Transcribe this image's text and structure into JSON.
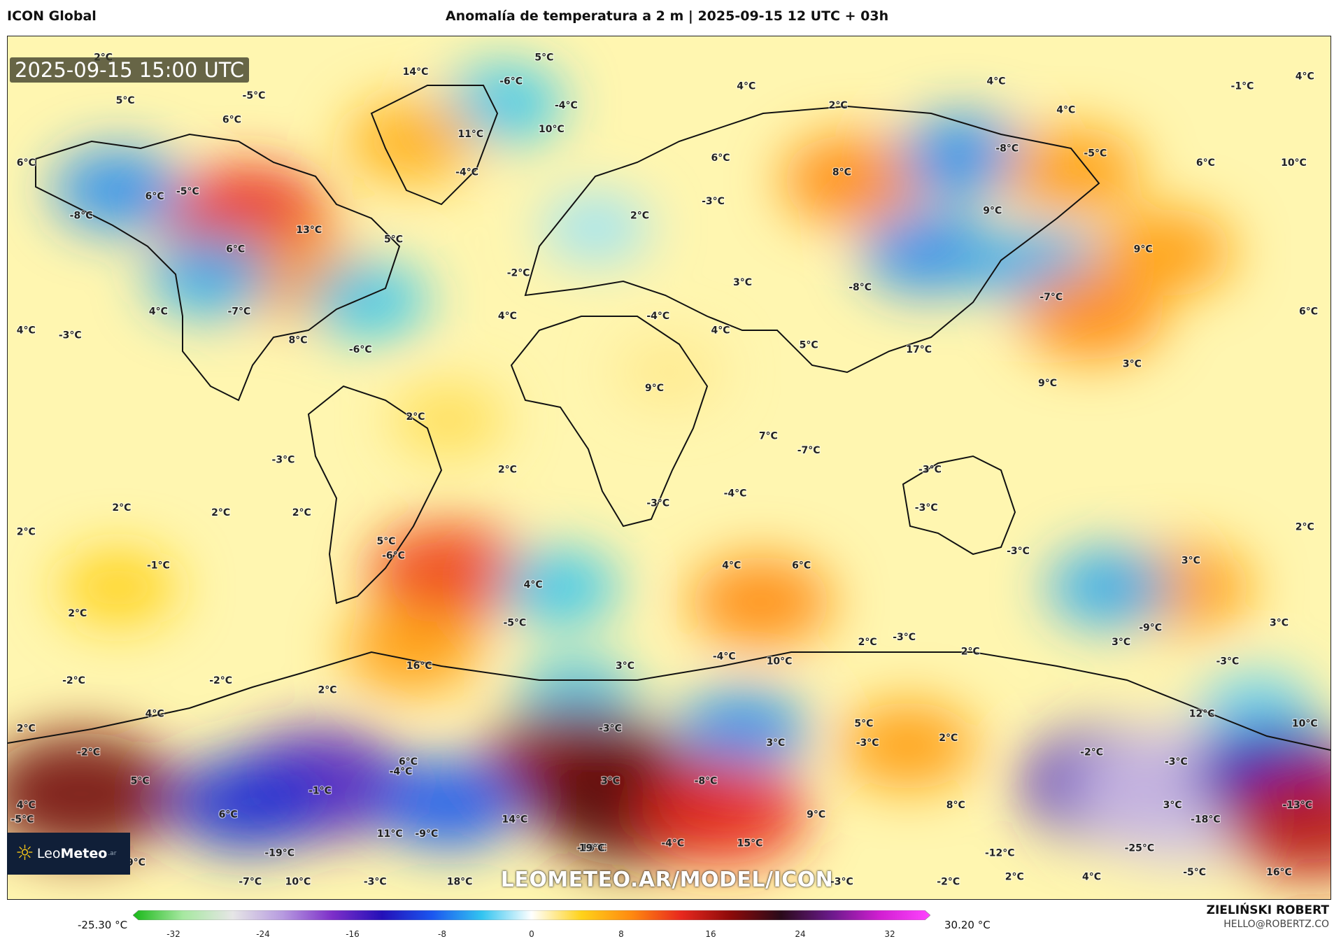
{
  "header": {
    "model": "ICON Global",
    "title": "Anomalía de temperatura a 2 m | 2025-09-15 12 UTC + 03h"
  },
  "timestamp": "2025-09-15 15:00 UTC",
  "watermark": "LEOMETEO.AR/MODEL/ICON",
  "logo": {
    "brand_light": "Leo",
    "brand_bold": "Meteo",
    "tld": ".ar",
    "icon": "sun-icon"
  },
  "author": {
    "name": "ZIELIŃSKI ROBERT",
    "email": "HELLO@ROBERTZ.CO"
  },
  "colorbar": {
    "min_label": "-25.30 °C",
    "max_label": "30.20 °C",
    "ticks": [
      "-32",
      "-24",
      "-16",
      "-8",
      "0",
      "8",
      "16",
      "24",
      "32"
    ],
    "range": [
      -32,
      32
    ],
    "stops": [
      {
        "v": -32,
        "c": "#18b818"
      },
      {
        "v": -28,
        "c": "#a6e8a0"
      },
      {
        "v": -24,
        "c": "#e6e6e6"
      },
      {
        "v": -20,
        "c": "#b79be0"
      },
      {
        "v": -16,
        "c": "#7d2fc9"
      },
      {
        "v": -12,
        "c": "#2410b8"
      },
      {
        "v": -8,
        "c": "#1b56ef"
      },
      {
        "v": -4,
        "c": "#32c4f0"
      },
      {
        "v": 0,
        "c": "#ffffff"
      },
      {
        "v": 4,
        "c": "#ffd21a"
      },
      {
        "v": 8,
        "c": "#ff8a10"
      },
      {
        "v": 12,
        "c": "#e8281e"
      },
      {
        "v": 16,
        "c": "#8c0a0a"
      },
      {
        "v": 20,
        "c": "#2a0a1a"
      },
      {
        "v": 24,
        "c": "#6a1a8a"
      },
      {
        "v": 28,
        "c": "#d21fd2"
      },
      {
        "v": 32,
        "c": "#ff44ff"
      }
    ]
  },
  "map": {
    "projection": "equirectangular",
    "lon_range": [
      -180,
      180
    ],
    "lat_range": [
      90,
      -90
    ],
    "anomalies": [
      {
        "lon": -115,
        "lat": 52,
        "v": 12
      },
      {
        "lon": -100,
        "lat": 40,
        "v": 7
      },
      {
        "lon": -150,
        "lat": 58,
        "v": -6
      },
      {
        "lon": -125,
        "lat": 40,
        "v": -5
      },
      {
        "lon": -82,
        "lat": 35,
        "v": -4
      },
      {
        "lon": -45,
        "lat": 76,
        "v": -4
      },
      {
        "lon": -60,
        "lat": 10,
        "v": 3
      },
      {
        "lon": -60,
        "lat": -22,
        "v": 11
      },
      {
        "lon": -70,
        "lat": -38,
        "v": 7
      },
      {
        "lon": -30,
        "lat": -25,
        "v": -4
      },
      {
        "lon": -20,
        "lat": 50,
        "v": -2
      },
      {
        "lon": 50,
        "lat": 60,
        "v": 8
      },
      {
        "lon": 80,
        "lat": 65,
        "v": -6
      },
      {
        "lon": 110,
        "lat": 62,
        "v": 7
      },
      {
        "lon": 70,
        "lat": 45,
        "v": -6
      },
      {
        "lon": 100,
        "lat": 42,
        "v": -5
      },
      {
        "lon": 115,
        "lat": 32,
        "v": 8
      },
      {
        "lon": 135,
        "lat": 45,
        "v": 7
      },
      {
        "lon": 25,
        "lat": -28,
        "v": 8
      },
      {
        "lon": 140,
        "lat": -25,
        "v": 7
      },
      {
        "lon": 120,
        "lat": -25,
        "v": -5
      },
      {
        "lon": -25,
        "lat": -48,
        "v": -4
      },
      {
        "lon": 20,
        "lat": -55,
        "v": -6
      },
      {
        "lon": 160,
        "lat": -50,
        "v": -3
      },
      {
        "lon": -160,
        "lat": -68,
        "v": 17
      },
      {
        "lon": -25,
        "lat": -62,
        "v": 16
      },
      {
        "lon": -10,
        "lat": -70,
        "v": 18
      },
      {
        "lon": -95,
        "lat": -66,
        "v": -14
      },
      {
        "lon": -115,
        "lat": -70,
        "v": -10
      },
      {
        "lon": -60,
        "lat": -70,
        "v": -8
      },
      {
        "lon": 15,
        "lat": -72,
        "v": 12
      },
      {
        "lon": 120,
        "lat": -66,
        "v": -14
      },
      {
        "lon": 140,
        "lat": -68,
        "v": -22
      },
      {
        "lon": 165,
        "lat": -64,
        "v": -12
      },
      {
        "lon": 175,
        "lat": -74,
        "v": 14
      },
      {
        "lon": 65,
        "lat": -58,
        "v": 7
      },
      {
        "lon": -70,
        "lat": 68,
        "v": 6
      },
      {
        "lon": -150,
        "lat": -25,
        "v": 4
      },
      {
        "lon": 0,
        "lat": 20,
        "v": 2
      }
    ],
    "labels": [
      {
        "t": "2°C",
        "lon": -154,
        "lat": 85
      },
      {
        "t": "-6°C",
        "lon": -43,
        "lat": 80
      },
      {
        "t": "5°C",
        "lon": -34,
        "lat": 85
      },
      {
        "t": "14°C",
        "lon": -69,
        "lat": 82
      },
      {
        "t": "4°C",
        "lon": 21,
        "lat": 79
      },
      {
        "t": "4°C",
        "lon": 89,
        "lat": 80
      },
      {
        "t": "-1°C",
        "lon": 156,
        "lat": 79
      },
      {
        "t": "4°C",
        "lon": 173,
        "lat": 81
      },
      {
        "t": "-5°C",
        "lon": -113,
        "lat": 77
      },
      {
        "t": "5°C",
        "lon": -148,
        "lat": 76
      },
      {
        "t": "-4°C",
        "lon": -28,
        "lat": 75
      },
      {
        "t": "2°C",
        "lon": 46,
        "lat": 75
      },
      {
        "t": "4°C",
        "lon": 108,
        "lat": 74
      },
      {
        "t": "6°C",
        "lon": -119,
        "lat": 72
      },
      {
        "t": "11°C",
        "lon": -54,
        "lat": 69
      },
      {
        "t": "10°C",
        "lon": -32,
        "lat": 70
      },
      {
        "t": "6°C",
        "lon": -175,
        "lat": 63
      },
      {
        "t": "6°C",
        "lon": 14,
        "lat": 64
      },
      {
        "t": "-8°C",
        "lon": 92,
        "lat": 66
      },
      {
        "t": "-5°C",
        "lon": 116,
        "lat": 65
      },
      {
        "t": "6°C",
        "lon": 146,
        "lat": 63
      },
      {
        "t": "10°C",
        "lon": 170,
        "lat": 63
      },
      {
        "t": "-4°C",
        "lon": -55,
        "lat": 61
      },
      {
        "t": "8°C",
        "lon": 47,
        "lat": 61
      },
      {
        "t": "6°C",
        "lon": -140,
        "lat": 56
      },
      {
        "t": "-5°C",
        "lon": -131,
        "lat": 57
      },
      {
        "t": "-3°C",
        "lon": 12,
        "lat": 55
      },
      {
        "t": "-8°C",
        "lon": -160,
        "lat": 52
      },
      {
        "t": "2°C",
        "lon": -8,
        "lat": 52
      },
      {
        "t": "9°C",
        "lon": 88,
        "lat": 53
      },
      {
        "t": "13°C",
        "lon": -98,
        "lat": 49
      },
      {
        "t": "5°C",
        "lon": -75,
        "lat": 47
      },
      {
        "t": "6°C",
        "lon": -118,
        "lat": 45
      },
      {
        "t": "-2°C",
        "lon": -41,
        "lat": 40
      },
      {
        "t": "9°C",
        "lon": 129,
        "lat": 45
      },
      {
        "t": "-8°C",
        "lon": 52,
        "lat": 37
      },
      {
        "t": "3°C",
        "lon": 20,
        "lat": 38
      },
      {
        "t": "-7°C",
        "lon": 104,
        "lat": 35
      },
      {
        "t": "4°C",
        "lon": -139,
        "lat": 32
      },
      {
        "t": "-7°C",
        "lon": -117,
        "lat": 32
      },
      {
        "t": "4°C",
        "lon": -44,
        "lat": 31
      },
      {
        "t": "-4°C",
        "lon": -3,
        "lat": 31
      },
      {
        "t": "4°C",
        "lon": 14,
        "lat": 28
      },
      {
        "t": "6°C",
        "lon": 174,
        "lat": 32
      },
      {
        "t": "-3°C",
        "lon": -163,
        "lat": 27
      },
      {
        "t": "8°C",
        "lon": -101,
        "lat": 26
      },
      {
        "t": "-6°C",
        "lon": -84,
        "lat": 24
      },
      {
        "t": "4°C",
        "lon": -175,
        "lat": 28
      },
      {
        "t": "5°C",
        "lon": 38,
        "lat": 25
      },
      {
        "t": "17°C",
        "lon": 68,
        "lat": 24
      },
      {
        "t": "3°C",
        "lon": 126,
        "lat": 21
      },
      {
        "t": "9°C",
        "lon": -4,
        "lat": 16
      },
      {
        "t": "9°C",
        "lon": 103,
        "lat": 17
      },
      {
        "t": "2°C",
        "lon": -69,
        "lat": 10
      },
      {
        "t": "7°C",
        "lon": 27,
        "lat": 6
      },
      {
        "t": "-7°C",
        "lon": 38,
        "lat": 3
      },
      {
        "t": "-3°C",
        "lon": -105,
        "lat": 1
      },
      {
        "t": "2°C",
        "lon": -44,
        "lat": -1
      },
      {
        "t": "-3°C",
        "lon": 71,
        "lat": -1
      },
      {
        "t": "2°C",
        "lon": -149,
        "lat": -9
      },
      {
        "t": "2°C",
        "lon": -122,
        "lat": -10
      },
      {
        "t": "2°C",
        "lon": -100,
        "lat": -10
      },
      {
        "t": "-3°C",
        "lon": -3,
        "lat": -8
      },
      {
        "t": "-4°C",
        "lon": 18,
        "lat": -6
      },
      {
        "t": "-3°C",
        "lon": 70,
        "lat": -9
      },
      {
        "t": "2°C",
        "lon": -175,
        "lat": -14
      },
      {
        "t": "2°C",
        "lon": 173,
        "lat": -13
      },
      {
        "t": "5°C",
        "lon": -77,
        "lat": -16
      },
      {
        "t": "-6°C",
        "lon": -75,
        "lat": -19
      },
      {
        "t": "-3°C",
        "lon": 95,
        "lat": -18
      },
      {
        "t": "-1°C",
        "lon": -139,
        "lat": -21
      },
      {
        "t": "4°C",
        "lon": 17,
        "lat": -21
      },
      {
        "t": "6°C",
        "lon": 36,
        "lat": -21
      },
      {
        "t": "3°C",
        "lon": 142,
        "lat": -20
      },
      {
        "t": "4°C",
        "lon": -37,
        "lat": -25
      },
      {
        "t": "2°C",
        "lon": -161,
        "lat": -31
      },
      {
        "t": "-5°C",
        "lon": -42,
        "lat": -33
      },
      {
        "t": "3°C",
        "lon": 166,
        "lat": -33
      },
      {
        "t": "-9°C",
        "lon": 131,
        "lat": -34
      },
      {
        "t": "-3°C",
        "lon": 64,
        "lat": -36
      },
      {
        "t": "3°C",
        "lon": 123,
        "lat": -37
      },
      {
        "t": "2°C",
        "lon": 54,
        "lat": -37
      },
      {
        "t": "2°C",
        "lon": 82,
        "lat": -39
      },
      {
        "t": "-4°C",
        "lon": 15,
        "lat": -40
      },
      {
        "t": "10°C",
        "lon": 30,
        "lat": -41
      },
      {
        "t": "-3°C",
        "lon": 152,
        "lat": -41
      },
      {
        "t": "16°C",
        "lon": -68,
        "lat": -42
      },
      {
        "t": "3°C",
        "lon": -12,
        "lat": -42
      },
      {
        "t": "-2°C",
        "lon": -162,
        "lat": -45
      },
      {
        "t": "-2°C",
        "lon": -122,
        "lat": -45
      },
      {
        "t": "2°C",
        "lon": -93,
        "lat": -47
      },
      {
        "t": "4°C",
        "lon": -140,
        "lat": -52
      },
      {
        "t": "12°C",
        "lon": 145,
        "lat": -52
      },
      {
        "t": "2°C",
        "lon": -175,
        "lat": -55
      },
      {
        "t": "-3°C",
        "lon": -16,
        "lat": -55
      },
      {
        "t": "5°C",
        "lon": 53,
        "lat": -54
      },
      {
        "t": "10°C",
        "lon": 173,
        "lat": -54
      },
      {
        "t": "3°C",
        "lon": 29,
        "lat": -58
      },
      {
        "t": "-3°C",
        "lon": 54,
        "lat": -58
      },
      {
        "t": "2°C",
        "lon": 76,
        "lat": -57
      },
      {
        "t": "-2°C",
        "lon": -158,
        "lat": -60
      },
      {
        "t": "-2°C",
        "lon": 115,
        "lat": -60
      },
      {
        "t": "-3°C",
        "lon": 138,
        "lat": -62
      },
      {
        "t": "6°C",
        "lon": -71,
        "lat": -62
      },
      {
        "t": "-4°C",
        "lon": -73,
        "lat": -64
      },
      {
        "t": "5°C",
        "lon": -144,
        "lat": -66
      },
      {
        "t": "-8°C",
        "lon": 10,
        "lat": -66
      },
      {
        "t": "3°C",
        "lon": -16,
        "lat": -66
      },
      {
        "t": "-1°C",
        "lon": -95,
        "lat": -68
      },
      {
        "t": "4°C",
        "lon": -175,
        "lat": -71
      },
      {
        "t": "6°C",
        "lon": -120,
        "lat": -73
      },
      {
        "t": "8°C",
        "lon": 78,
        "lat": -71
      },
      {
        "t": "3°C",
        "lon": 137,
        "lat": -71
      },
      {
        "t": "-13°C",
        "lon": 171,
        "lat": -71
      },
      {
        "t": "-5°C",
        "lon": -176,
        "lat": -74
      },
      {
        "t": "14°C",
        "lon": -42,
        "lat": -74
      },
      {
        "t": "9°C",
        "lon": 40,
        "lat": -73
      },
      {
        "t": "-18°C",
        "lon": 146,
        "lat": -74
      },
      {
        "t": "11°C",
        "lon": -76,
        "lat": -77
      },
      {
        "t": "-9°C",
        "lon": -66,
        "lat": -77
      },
      {
        "t": "-4°C",
        "lon": 1,
        "lat": -79
      },
      {
        "t": "15°C",
        "lon": 22,
        "lat": -79
      },
      {
        "t": "-19°C",
        "lon": -21,
        "lat": -80
      },
      {
        "t": "19°C",
        "lon": -21,
        "lat": -80
      },
      {
        "t": "-12°C",
        "lon": 90,
        "lat": -81
      },
      {
        "t": "-25°C",
        "lon": 128,
        "lat": -80
      },
      {
        "t": "-19°C",
        "lon": -106,
        "lat": -81
      },
      {
        "t": "19°C",
        "lon": -146,
        "lat": -83
      },
      {
        "t": "-7°C",
        "lon": -114,
        "lat": -87
      },
      {
        "t": "10°C",
        "lon": -101,
        "lat": -87
      },
      {
        "t": "-3°C",
        "lon": -80,
        "lat": -87
      },
      {
        "t": "18°C",
        "lon": -57,
        "lat": -87
      },
      {
        "t": "-3°C",
        "lon": 47,
        "lat": -87
      },
      {
        "t": "-2°C",
        "lon": 76,
        "lat": -87
      },
      {
        "t": "2°C",
        "lon": 94,
        "lat": -86
      },
      {
        "t": "4°C",
        "lon": 115,
        "lat": -86
      },
      {
        "t": "-5°C",
        "lon": 143,
        "lat": -85
      },
      {
        "t": "16°C",
        "lon": 166,
        "lat": -85
      }
    ]
  }
}
